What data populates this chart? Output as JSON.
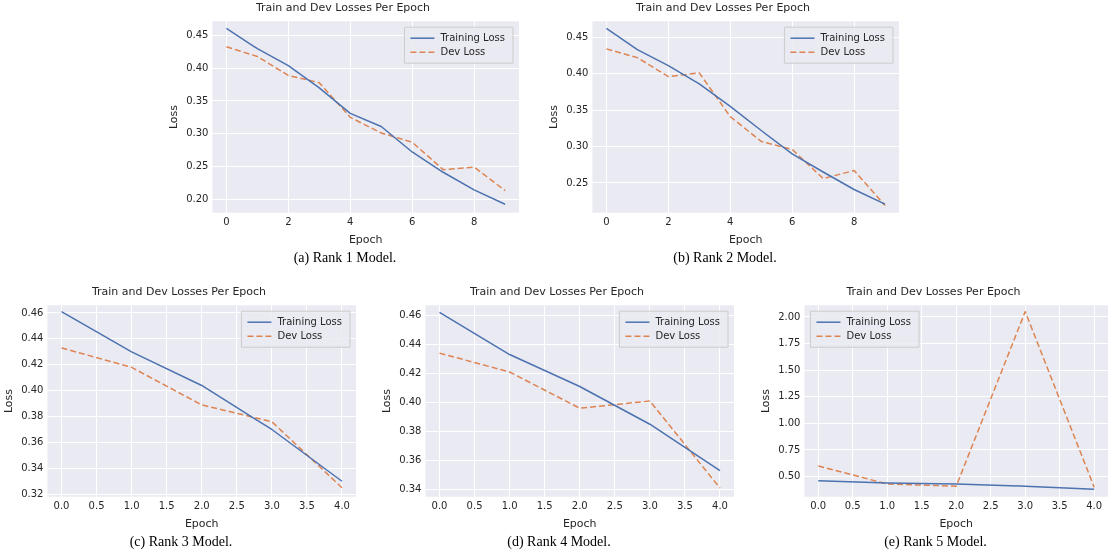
{
  "chart_data": [
    {
      "type": "line",
      "title": "Train and Dev Losses Per Epoch",
      "xlabel": "Epoch",
      "ylabel": "Loss",
      "annotations": [
        "(a) Rank 1 Model."
      ],
      "x": [
        0,
        1,
        2,
        3,
        4,
        5,
        6,
        7,
        8,
        9
      ],
      "xlim": [
        -0.45,
        9.45
      ],
      "xticks": [
        0,
        2,
        4,
        6,
        8
      ],
      "ylim": [
        0.179,
        0.472
      ],
      "yticks": [
        {
          "value": 0.2,
          "label": "0.20"
        },
        {
          "value": 0.25,
          "label": "0.25"
        },
        {
          "value": 0.3,
          "label": "0.30"
        },
        {
          "value": 0.35,
          "label": "0.35"
        },
        {
          "value": 0.4,
          "label": "0.40"
        },
        {
          "value": 0.45,
          "label": "0.45"
        }
      ],
      "grid": true,
      "legend": "top right",
      "series": [
        {
          "name": "Training Loss",
          "color": "#4c72b0",
          "line_style": "solid",
          "values": [
            0.461,
            0.43,
            0.404,
            0.37,
            0.331,
            0.311,
            0.272,
            0.241,
            0.214,
            0.192
          ]
        },
        {
          "name": "Dev Loss",
          "color": "#dd8452",
          "line_style": "dashed",
          "values": [
            0.433,
            0.418,
            0.389,
            0.378,
            0.325,
            0.301,
            0.287,
            0.245,
            0.249,
            0.213
          ]
        }
      ]
    },
    {
      "type": "line",
      "title": "Train and Dev Losses Per Epoch",
      "xlabel": "Epoch",
      "ylabel": "Loss",
      "annotations": [
        "(b) Rank 2 Model."
      ],
      "x": [
        0,
        1,
        2,
        3,
        4,
        5,
        6,
        7,
        8,
        9
      ],
      "xlim": [
        -0.45,
        9.45
      ],
      "xticks": [
        0,
        2,
        4,
        6,
        8
      ],
      "ylim": [
        0.209,
        0.472
      ],
      "yticks": [
        {
          "value": 0.25,
          "label": "0.25"
        },
        {
          "value": 0.3,
          "label": "0.30"
        },
        {
          "value": 0.35,
          "label": "0.35"
        },
        {
          "value": 0.4,
          "label": "0.40"
        },
        {
          "value": 0.45,
          "label": "0.45"
        }
      ],
      "grid": true,
      "legend": "top right",
      "series": [
        {
          "name": "Training Loss",
          "color": "#4c72b0",
          "line_style": "solid",
          "values": [
            0.462,
            0.433,
            0.411,
            0.386,
            0.355,
            0.322,
            0.29,
            0.265,
            0.241,
            0.221
          ]
        },
        {
          "name": "Dev Loss",
          "color": "#dd8452",
          "line_style": "dashed",
          "values": [
            0.434,
            0.422,
            0.396,
            0.401,
            0.341,
            0.307,
            0.296,
            0.256,
            0.267,
            0.219
          ]
        }
      ]
    },
    {
      "type": "line",
      "title": "Train and Dev Losses Per Epoch",
      "xlabel": "Epoch",
      "ylabel": "Loss",
      "annotations": [
        "(c) Rank 3 Model."
      ],
      "x": [
        0,
        1,
        2,
        3,
        4
      ],
      "xlim": [
        -0.2,
        4.2
      ],
      "xticks": [
        {
          "value": 0,
          "label": "0.0"
        },
        {
          "value": 0.5,
          "label": "0.5"
        },
        {
          "value": 1,
          "label": "1.0"
        },
        {
          "value": 1.5,
          "label": "1.5"
        },
        {
          "value": 2,
          "label": "2.0"
        },
        {
          "value": 2.5,
          "label": "2.5"
        },
        {
          "value": 3,
          "label": "3.0"
        },
        {
          "value": 3.5,
          "label": "3.5"
        },
        {
          "value": 4,
          "label": "4.0"
        }
      ],
      "ylim": [
        0.318,
        0.466
      ],
      "yticks": [
        {
          "value": 0.32,
          "label": "0.32"
        },
        {
          "value": 0.34,
          "label": "0.34"
        },
        {
          "value": 0.36,
          "label": "0.36"
        },
        {
          "value": 0.38,
          "label": "0.38"
        },
        {
          "value": 0.4,
          "label": "0.40"
        },
        {
          "value": 0.42,
          "label": "0.42"
        },
        {
          "value": 0.44,
          "label": "0.44"
        },
        {
          "value": 0.46,
          "label": "0.46"
        }
      ],
      "grid": true,
      "legend": "top right",
      "series": [
        {
          "name": "Training Loss",
          "color": "#4c72b0",
          "line_style": "solid",
          "values": [
            0.461,
            0.43,
            0.404,
            0.37,
            0.33
          ]
        },
        {
          "name": "Dev Loss",
          "color": "#dd8452",
          "line_style": "dashed",
          "values": [
            0.433,
            0.418,
            0.389,
            0.376,
            0.325
          ]
        }
      ]
    },
    {
      "type": "line",
      "title": "Train and Dev Losses Per Epoch",
      "xlabel": "Epoch",
      "ylabel": "Loss",
      "annotations": [
        "(d) Rank 4 Model."
      ],
      "x": [
        0,
        1,
        2,
        3,
        4
      ],
      "xlim": [
        -0.2,
        4.2
      ],
      "xticks": [
        {
          "value": 0,
          "label": "0.0"
        },
        {
          "value": 0.5,
          "label": "0.5"
        },
        {
          "value": 1,
          "label": "1.0"
        },
        {
          "value": 1.5,
          "label": "1.5"
        },
        {
          "value": 2,
          "label": "2.0"
        },
        {
          "value": 2.5,
          "label": "2.5"
        },
        {
          "value": 3,
          "label": "3.0"
        },
        {
          "value": 3.5,
          "label": "3.5"
        },
        {
          "value": 4,
          "label": "4.0"
        }
      ],
      "ylim": [
        0.335,
        0.467
      ],
      "yticks": [
        {
          "value": 0.34,
          "label": "0.34"
        },
        {
          "value": 0.36,
          "label": "0.36"
        },
        {
          "value": 0.38,
          "label": "0.38"
        },
        {
          "value": 0.4,
          "label": "0.40"
        },
        {
          "value": 0.42,
          "label": "0.42"
        },
        {
          "value": 0.44,
          "label": "0.44"
        },
        {
          "value": 0.46,
          "label": "0.46"
        }
      ],
      "grid": true,
      "legend": "top right",
      "series": [
        {
          "name": "Training Loss",
          "color": "#4c72b0",
          "line_style": "solid",
          "values": [
            0.462,
            0.433,
            0.411,
            0.385,
            0.353
          ]
        },
        {
          "name": "Dev Loss",
          "color": "#dd8452",
          "line_style": "dashed",
          "values": [
            0.434,
            0.421,
            0.396,
            0.401,
            0.341
          ]
        }
      ]
    },
    {
      "type": "line",
      "title": "Train and Dev Losses Per Epoch",
      "xlabel": "Epoch",
      "ylabel": "Loss",
      "annotations": [
        "(e) Rank 5 Model."
      ],
      "x": [
        0,
        1,
        2,
        3,
        4
      ],
      "xlim": [
        -0.2,
        4.2
      ],
      "xticks": [
        {
          "value": 0,
          "label": "0.0"
        },
        {
          "value": 0.5,
          "label": "0.5"
        },
        {
          "value": 1,
          "label": "1.0"
        },
        {
          "value": 1.5,
          "label": "1.5"
        },
        {
          "value": 2,
          "label": "2.0"
        },
        {
          "value": 2.5,
          "label": "2.5"
        },
        {
          "value": 3,
          "label": "3.0"
        },
        {
          "value": 3.5,
          "label": "3.5"
        },
        {
          "value": 4,
          "label": "4.0"
        }
      ],
      "ylim": [
        0.31,
        2.11
      ],
      "yticks": [
        {
          "value": 0.5,
          "label": "0.50"
        },
        {
          "value": 0.75,
          "label": "0.75"
        },
        {
          "value": 1,
          "label": "1.00"
        },
        {
          "value": 1.25,
          "label": "1.25"
        },
        {
          "value": 1.5,
          "label": "1.50"
        },
        {
          "value": 1.75,
          "label": "1.75"
        },
        {
          "value": 2,
          "label": "2.00"
        }
      ],
      "grid": true,
      "legend": "top left",
      "series": [
        {
          "name": "Training Loss",
          "color": "#4c72b0",
          "line_style": "solid",
          "values": [
            0.46,
            0.44,
            0.43,
            0.41,
            0.38
          ]
        },
        {
          "name": "Dev Loss",
          "color": "#dd8452",
          "line_style": "dashed",
          "values": [
            0.6,
            0.43,
            0.41,
            2.05,
            0.4
          ]
        }
      ]
    }
  ]
}
